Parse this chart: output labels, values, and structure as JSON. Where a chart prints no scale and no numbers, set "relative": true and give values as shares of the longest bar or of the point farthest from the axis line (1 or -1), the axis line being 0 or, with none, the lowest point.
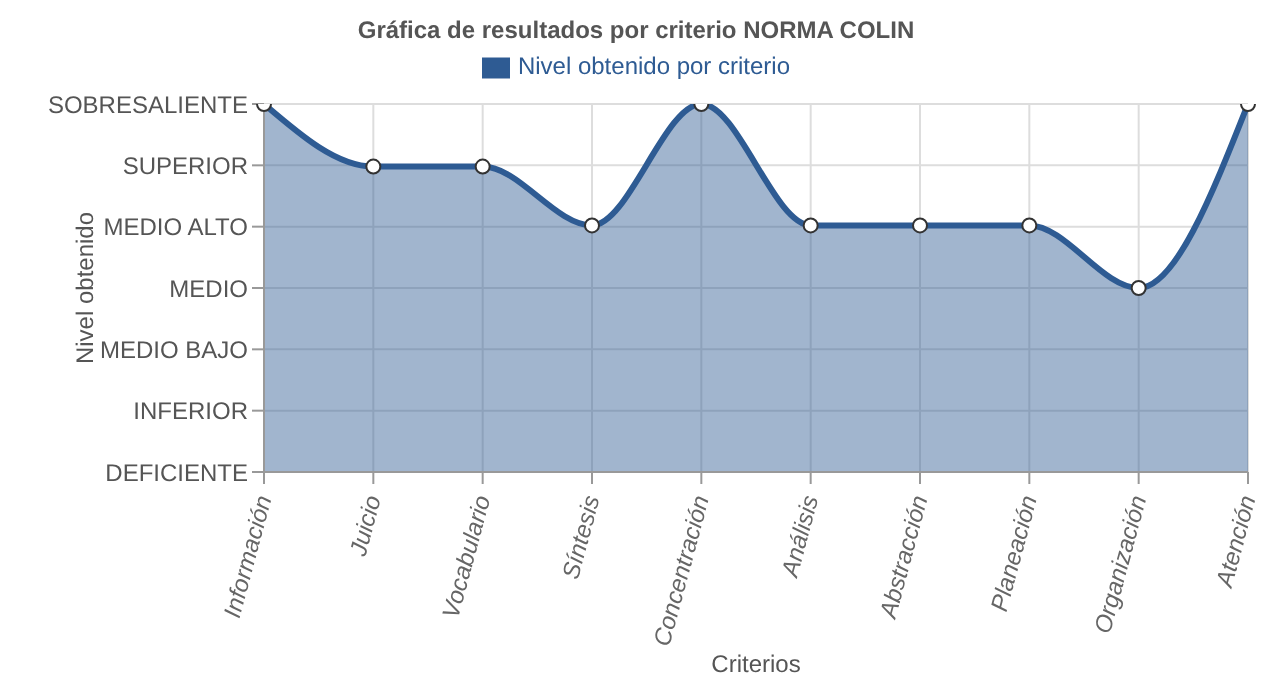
{
  "chart_data": {
    "type": "area",
    "title": "Gráfica de resultados por criterio NORMA COLIN",
    "xlabel": "Criterios",
    "ylabel": "Nivel obtenido",
    "categories": [
      "Información",
      "Juicio",
      "Vocabulario",
      "Síntesis",
      "Concentración",
      "Análisis",
      "Abstracción",
      "Planeación",
      "Organización",
      "Atención"
    ],
    "y_categories": [
      "SOBRESALIENTE",
      "SUPERIOR",
      "MEDIO ALTO",
      "MEDIO",
      "MEDIO BAJO",
      "INFERIOR",
      "DEFICIENTE"
    ],
    "relative": true,
    "series": [
      {
        "name": "Nivel obtenido por criterio",
        "color": "#2e5b93",
        "values": [
          1,
          0.83,
          0.83,
          0.67,
          1,
          0.67,
          0.67,
          0.67,
          0.5,
          1
        ]
      }
    ],
    "grid": true,
    "legend": "top",
    "marker": "circle",
    "line_style": "solid"
  }
}
